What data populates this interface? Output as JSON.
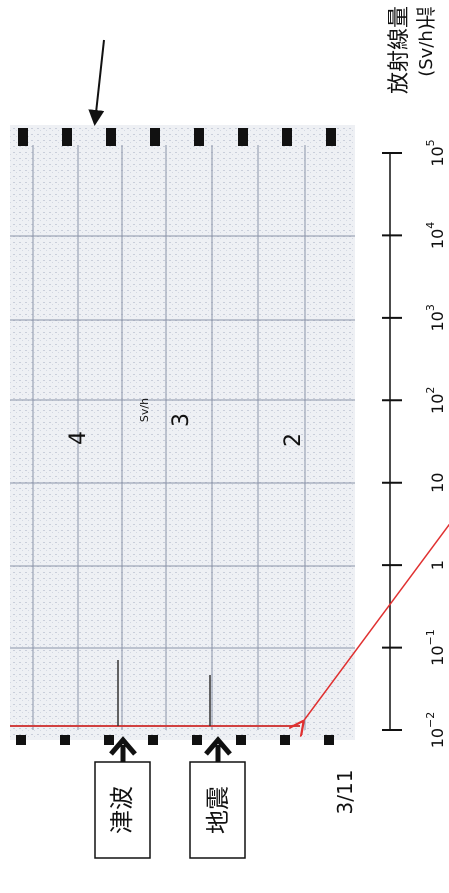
{
  "header": {
    "title": "放射線量",
    "unit": "(Sv/h)",
    "top_label": "計"
  },
  "axis": {
    "ticks": [
      {
        "base": "10",
        "exponent": "5"
      },
      {
        "base": "10",
        "exponent": "4"
      },
      {
        "base": "10",
        "exponent": "3"
      },
      {
        "base": "10",
        "exponent": "2"
      },
      {
        "base": "10",
        "exponent": null
      },
      {
        "base": "1",
        "exponent": null
      },
      {
        "base": "10",
        "exponent": "−1"
      },
      {
        "base": "10",
        "exponent": "−2"
      }
    ]
  },
  "annotations": {
    "tsunami": "津波",
    "earthquake": "地震",
    "date": "3/11"
  },
  "scan": {
    "marks": [
      "4",
      "3",
      "2",
      "Sv/h"
    ]
  }
}
